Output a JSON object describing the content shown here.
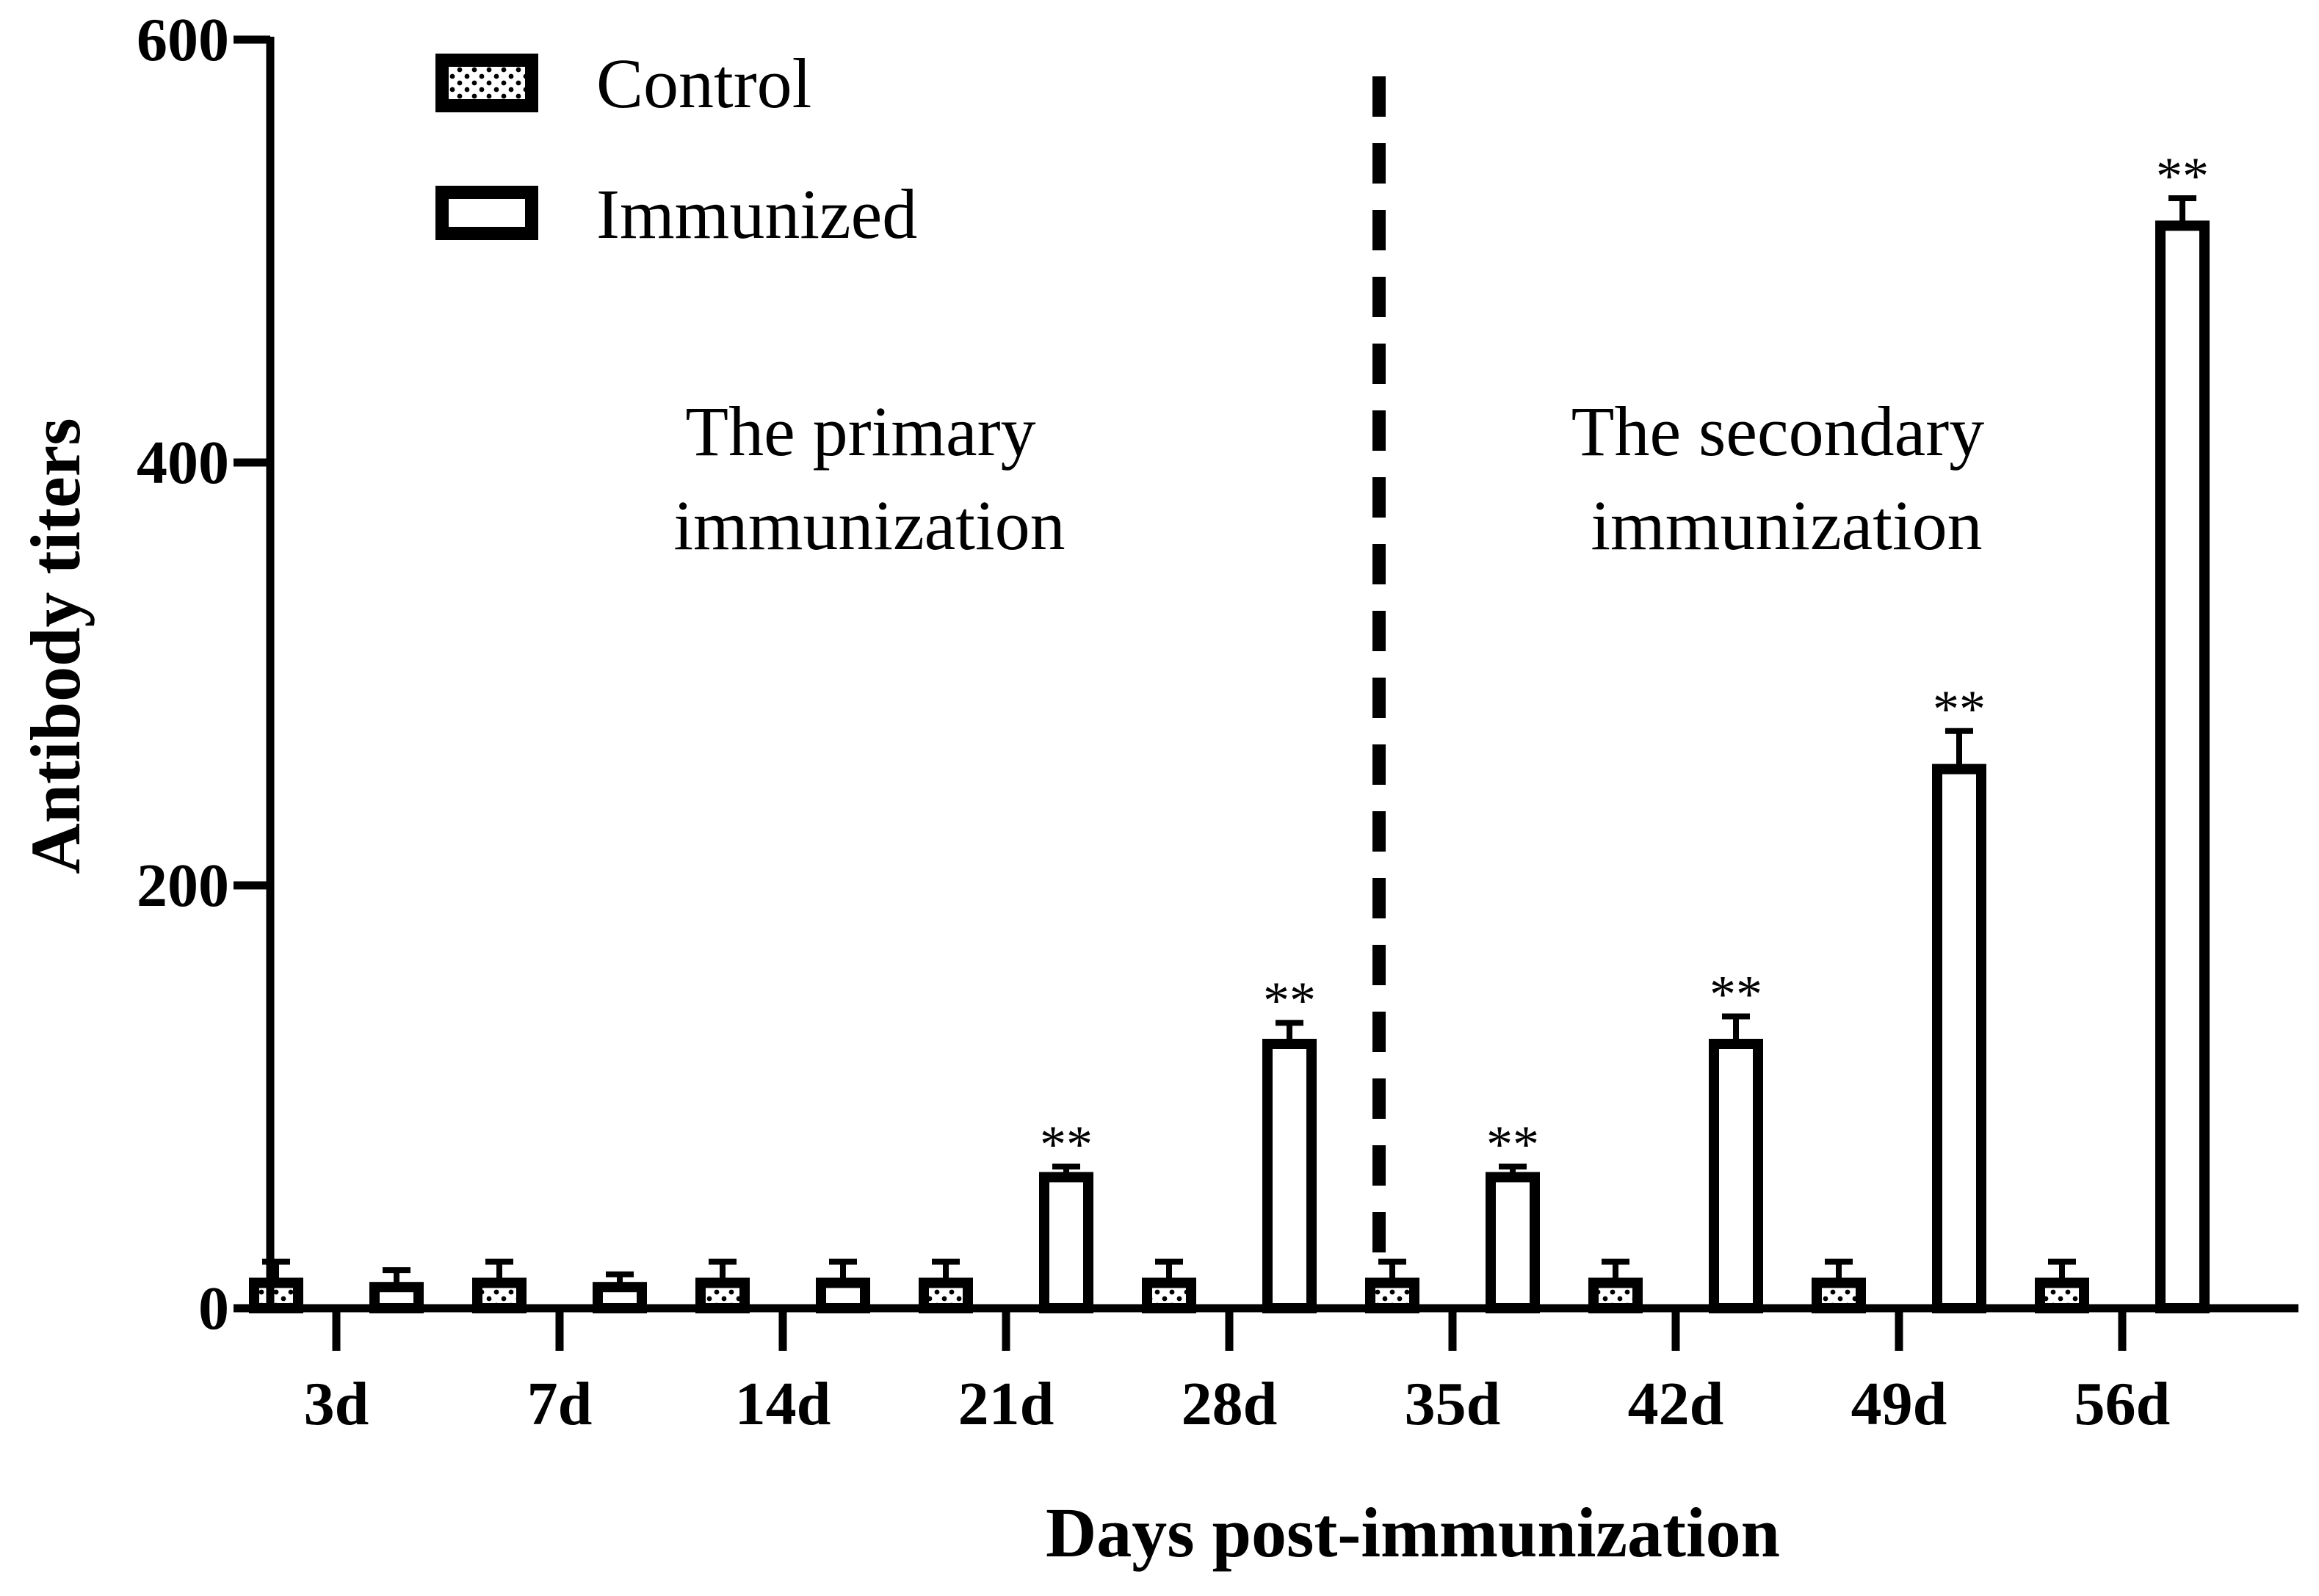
{
  "chart_data": {
    "type": "bar",
    "title": "",
    "xlabel": "Days post-immunization",
    "ylabel": "Antibody titers",
    "ylim": [
      0,
      600
    ],
    "yticks": [
      0,
      200,
      400,
      600
    ],
    "categories": [
      "3d",
      "7d",
      "14d",
      "21d",
      "28d",
      "35d",
      "42d",
      "49d",
      "56d"
    ],
    "series": [
      {
        "name": "Control",
        "pattern": "dotted",
        "values": [
          12,
          12,
          12,
          12,
          12,
          12,
          12,
          12,
          12
        ],
        "errors": [
          10,
          10,
          10,
          10,
          10,
          10,
          10,
          10,
          10
        ],
        "significance": [
          "",
          "",
          "",
          "",
          "",
          "",
          "",
          "",
          ""
        ]
      },
      {
        "name": "Immunized",
        "pattern": "open",
        "values": [
          10,
          10,
          12,
          62,
          125,
          62,
          125,
          255,
          512
        ],
        "errors": [
          8,
          6,
          10,
          5,
          10,
          5,
          13,
          18,
          13
        ],
        "significance": [
          "",
          "",
          "",
          "**",
          "**",
          "**",
          "**",
          "**",
          "**"
        ]
      }
    ],
    "legend": {
      "position": "top-left",
      "entries": [
        "Control",
        "Immunized"
      ]
    },
    "annotations": [
      {
        "lines": [
          "The primary",
          "immunization"
        ]
      },
      {
        "lines": [
          "The secondary",
          "immunization"
        ]
      }
    ],
    "divider": {
      "style": "dashed",
      "between": [
        "28d",
        "35d"
      ]
    }
  },
  "colors": {
    "bar_stroke": "#000000",
    "bar_fill": "#ffffff",
    "axis": "#000000"
  }
}
